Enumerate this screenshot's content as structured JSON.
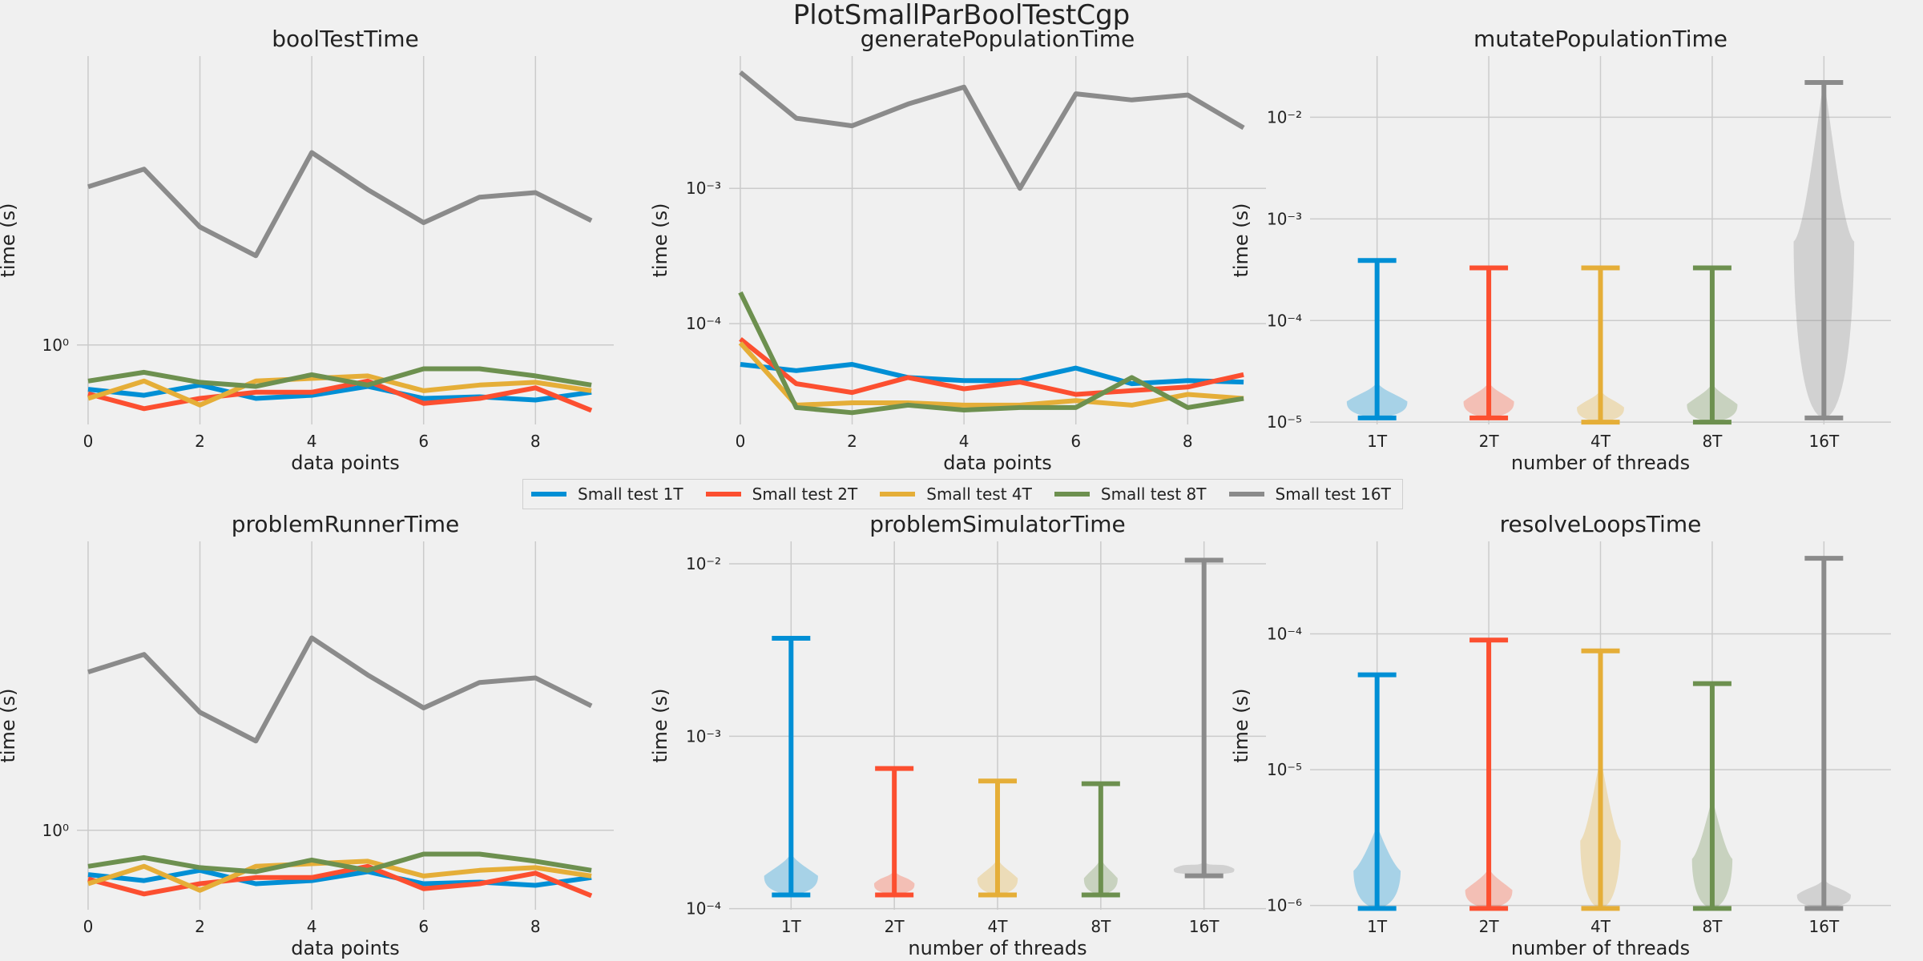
{
  "figure_title": "PlotSmallParBoolTestCgp",
  "colors": {
    "background": "#f0f0f0",
    "grid": "#cbcbcb",
    "series": [
      "#008fd5",
      "#fc4f30",
      "#e5ae38",
      "#6d904f",
      "#8b8b8b"
    ]
  },
  "legend": [
    "Small test 1T",
    "Small test 2T",
    "Small test 4T",
    "Small test 8T",
    "Small test 16T"
  ],
  "chart_data": [
    {
      "id": "boolTestTime",
      "type": "line",
      "title": "boolTestTime",
      "xlabel": "data points",
      "ylabel": "time (s)",
      "yscale": "log",
      "xlim": [
        -0.2,
        9.4
      ],
      "ylim": [
        0.4,
        28
      ],
      "xticks": [
        0,
        2,
        4,
        6,
        8
      ],
      "yticks": [
        1
      ],
      "ytick_labels": [
        "10⁰"
      ],
      "x": [
        0,
        1,
        2,
        3,
        4,
        5,
        6,
        7,
        8,
        9
      ],
      "series": [
        {
          "name": "Small test 1T",
          "values": [
            0.6,
            0.56,
            0.63,
            0.54,
            0.56,
            0.62,
            0.54,
            0.55,
            0.53,
            0.58
          ]
        },
        {
          "name": "Small test 2T",
          "values": [
            0.57,
            0.48,
            0.54,
            0.58,
            0.58,
            0.66,
            0.51,
            0.54,
            0.61,
            0.47
          ]
        },
        {
          "name": "Small test 4T",
          "values": [
            0.54,
            0.66,
            0.5,
            0.66,
            0.68,
            0.7,
            0.59,
            0.63,
            0.65,
            0.59
          ]
        },
        {
          "name": "Small test 8T",
          "values": [
            0.66,
            0.73,
            0.65,
            0.62,
            0.71,
            0.63,
            0.76,
            0.76,
            0.7,
            0.63
          ]
        },
        {
          "name": "Small test 16T",
          "values": [
            6.2,
            7.6,
            3.9,
            2.8,
            9.2,
            6.0,
            4.1,
            5.5,
            5.8,
            4.2
          ]
        }
      ]
    },
    {
      "id": "generatePopulationTime",
      "type": "line",
      "title": "generatePopulationTime",
      "xlabel": "data points",
      "ylabel": "time (s)",
      "yscale": "log",
      "xlim": [
        -0.2,
        9.4
      ],
      "ylim": [
        1.8e-05,
        0.0095
      ],
      "xticks": [
        0,
        2,
        4,
        6,
        8
      ],
      "yticks": [
        0.0001,
        0.001
      ],
      "ytick_labels": [
        "10⁻⁴",
        "10⁻³"
      ],
      "x": [
        0,
        1,
        2,
        3,
        4,
        5,
        6,
        7,
        8,
        9
      ],
      "series": [
        {
          "name": "Small test 1T",
          "values": [
            5e-05,
            4.5e-05,
            5e-05,
            4e-05,
            3.8e-05,
            3.8e-05,
            4.7e-05,
            3.6e-05,
            3.8e-05,
            3.7e-05
          ]
        },
        {
          "name": "Small test 2T",
          "values": [
            7.7e-05,
            3.6e-05,
            3.1e-05,
            4e-05,
            3.3e-05,
            3.7e-05,
            3e-05,
            3.2e-05,
            3.4e-05,
            4.2e-05
          ]
        },
        {
          "name": "Small test 4T",
          "values": [
            7.2e-05,
            2.5e-05,
            2.6e-05,
            2.6e-05,
            2.5e-05,
            2.5e-05,
            2.7e-05,
            2.5e-05,
            3e-05,
            2.8e-05
          ]
        },
        {
          "name": "Small test 8T",
          "values": [
            0.00017,
            2.4e-05,
            2.2e-05,
            2.5e-05,
            2.3e-05,
            2.4e-05,
            2.4e-05,
            4e-05,
            2.4e-05,
            2.8e-05
          ]
        },
        {
          "name": "Small test 16T",
          "values": [
            0.0072,
            0.0033,
            0.0029,
            0.0042,
            0.0056,
            0.001,
            0.005,
            0.0045,
            0.0049,
            0.0028
          ]
        }
      ]
    },
    {
      "id": "mutatePopulationTime",
      "type": "violin",
      "title": "mutatePopulationTime",
      "xlabel": "number of threads",
      "ylabel": "time (s)",
      "yscale": "log",
      "xlim": [
        0.4,
        5.6
      ],
      "ylim": [
        9.5e-06,
        0.04
      ],
      "yticks": [
        1e-05,
        0.0001,
        0.001,
        0.01
      ],
      "ytick_labels": [
        "10⁻⁵",
        "10⁻⁴",
        "10⁻³",
        "10⁻²"
      ],
      "categories": [
        "1T",
        "2T",
        "4T",
        "8T",
        "16T"
      ],
      "series": [
        {
          "name": "Small test 1T",
          "min": 1.1e-05,
          "max": 0.00039,
          "mode": 1.6e-05,
          "width": 0.9
        },
        {
          "name": "Small test 2T",
          "min": 1.1e-05,
          "max": 0.00033,
          "mode": 1.6e-05,
          "width": 0.75
        },
        {
          "name": "Small test 4T",
          "min": 1e-05,
          "max": 0.00033,
          "mode": 1.4e-05,
          "width": 0.7
        },
        {
          "name": "Small test 8T",
          "min": 1e-05,
          "max": 0.00033,
          "mode": 1.5e-05,
          "width": 0.75
        },
        {
          "name": "Small test 16T",
          "min": 1.1e-05,
          "max": 0.022,
          "mode": 0.0006,
          "width": 0.9
        }
      ]
    },
    {
      "id": "problemRunnerTime",
      "type": "line",
      "title": "problemRunnerTime",
      "xlabel": "data points",
      "ylabel": "time (s)",
      "yscale": "log",
      "xlim": [
        -0.2,
        9.4
      ],
      "ylim": [
        0.4,
        28
      ],
      "xticks": [
        0,
        2,
        4,
        6,
        8
      ],
      "yticks": [
        1
      ],
      "ytick_labels": [
        "10⁰"
      ],
      "x": [
        0,
        1,
        2,
        3,
        4,
        5,
        6,
        7,
        8,
        9
      ],
      "series": [
        {
          "name": "Small test 1T",
          "values": [
            0.6,
            0.56,
            0.63,
            0.54,
            0.56,
            0.62,
            0.54,
            0.55,
            0.53,
            0.58
          ]
        },
        {
          "name": "Small test 2T",
          "values": [
            0.57,
            0.48,
            0.54,
            0.58,
            0.58,
            0.66,
            0.51,
            0.54,
            0.61,
            0.47
          ]
        },
        {
          "name": "Small test 4T",
          "values": [
            0.54,
            0.66,
            0.5,
            0.66,
            0.68,
            0.7,
            0.59,
            0.63,
            0.65,
            0.59
          ]
        },
        {
          "name": "Small test 8T",
          "values": [
            0.66,
            0.73,
            0.65,
            0.62,
            0.71,
            0.63,
            0.76,
            0.76,
            0.7,
            0.63
          ]
        },
        {
          "name": "Small test 16T",
          "values": [
            6.2,
            7.6,
            3.9,
            2.8,
            9.2,
            6.0,
            4.1,
            5.5,
            5.8,
            4.2
          ]
        }
      ]
    },
    {
      "id": "problemSimulatorTime",
      "type": "violin",
      "title": "problemSimulatorTime",
      "xlabel": "number of threads",
      "ylabel": "time (s)",
      "yscale": "log",
      "xlim": [
        0.4,
        5.6
      ],
      "ylim": [
        9.85e-05,
        0.0135
      ],
      "yticks": [
        0.0001,
        0.001,
        0.01
      ],
      "ytick_labels": [
        "10⁻⁴",
        "10⁻³",
        "10⁻²"
      ],
      "categories": [
        "1T",
        "2T",
        "4T",
        "8T",
        "16T"
      ],
      "series": [
        {
          "name": "Small test 1T",
          "min": 0.00012,
          "max": 0.0037,
          "mode": 0.000155,
          "width": 0.8
        },
        {
          "name": "Small test 2T",
          "min": 0.00012,
          "max": 0.00065,
          "mode": 0.00014,
          "width": 0.6
        },
        {
          "name": "Small test 4T",
          "min": 0.00012,
          "max": 0.00055,
          "mode": 0.00015,
          "width": 0.6
        },
        {
          "name": "Small test 8T",
          "min": 0.00012,
          "max": 0.00053,
          "mode": 0.00015,
          "width": 0.5
        },
        {
          "name": "Small test 16T",
          "min": 0.000155,
          "max": 0.0105,
          "mode": 0.00017,
          "width": 0.9
        }
      ]
    },
    {
      "id": "resolveLoopsTime",
      "type": "violin",
      "title": "resolveLoopsTime",
      "xlabel": "number of threads",
      "ylabel": "time (s)",
      "yscale": "log",
      "xlim": [
        0.4,
        5.6
      ],
      "ylim": [
        9.3e-07,
        0.00048
      ],
      "yticks": [
        1e-06,
        1e-05,
        0.0001
      ],
      "ytick_labels": [
        "10⁻⁶",
        "10⁻⁵",
        "10⁻⁴"
      ],
      "categories": [
        "1T",
        "2T",
        "4T",
        "8T",
        "16T"
      ],
      "series": [
        {
          "name": "Small test 1T",
          "min": 9.5e-07,
          "max": 5e-05,
          "mode": 1.8e-06,
          "width": 0.7
        },
        {
          "name": "Small test 2T",
          "min": 9.5e-07,
          "max": 9e-05,
          "mode": 1.3e-06,
          "width": 0.7
        },
        {
          "name": "Small test 4T",
          "min": 9.5e-07,
          "max": 7.5e-05,
          "mode": 3e-06,
          "width": 0.6
        },
        {
          "name": "Small test 8T",
          "min": 9.5e-07,
          "max": 4.3e-05,
          "mode": 2.2e-06,
          "width": 0.6
        },
        {
          "name": "Small test 16T",
          "min": 9.5e-07,
          "max": 0.00036,
          "mode": 1.2e-06,
          "width": 0.8
        }
      ]
    }
  ]
}
